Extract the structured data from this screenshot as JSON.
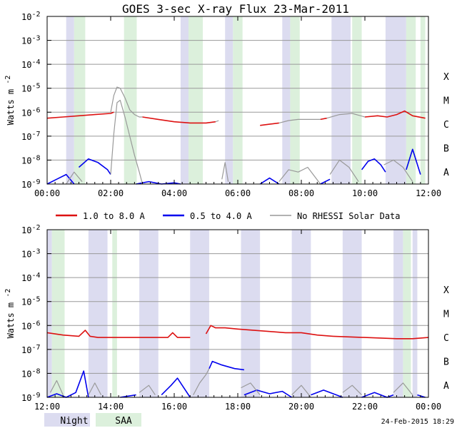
{
  "title": "GOES 3-sec X-ray Flux   23-Mar-2011",
  "timestamp": "24-Feb-2015 18:29",
  "colors": {
    "long": "#dd1111",
    "short": "#0000ee",
    "no_rhessi": "#999999",
    "night": "#dcdcf0",
    "saa": "#dcf0dc",
    "grid": "#999999"
  },
  "legend": {
    "long_label": "1.0 to 8.0 A",
    "short_label": "0.5 to 4.0 A",
    "no_rhessi_label": "No RHESSI Solar Data",
    "night_label": "Night",
    "saa_label": "SAA"
  },
  "chart_data": [
    {
      "type": "line",
      "panel": "top",
      "ylabel": "Watts m",
      "ylabel_exp": "-2",
      "ylim_log10": [
        -9,
        -2
      ],
      "xlim_hours": [
        0,
        12
      ],
      "x_tick_labels": [
        "00:00",
        "02:00",
        "04:00",
        "06:00",
        "08:00",
        "10:00",
        "12:00"
      ],
      "y_tick_labels": [
        {
          "base": "10",
          "exp": "-2"
        },
        {
          "base": "10",
          "exp": "-3"
        },
        {
          "base": "10",
          "exp": "-4"
        },
        {
          "base": "10",
          "exp": "-5"
        },
        {
          "base": "10",
          "exp": "-6"
        },
        {
          "base": "10",
          "exp": "-7"
        },
        {
          "base": "10",
          "exp": "-8"
        },
        {
          "base": "10",
          "exp": "-9"
        }
      ],
      "class_labels": [
        {
          "label": "X",
          "log10": -4
        },
        {
          "label": "M",
          "log10": -5
        },
        {
          "label": "C",
          "log10": -6
        },
        {
          "label": "B",
          "log10": -7
        },
        {
          "label": "A",
          "log10": -8
        }
      ],
      "night_intervals": [
        [
          0.6,
          0.85
        ],
        [
          4.2,
          4.45
        ],
        [
          5.6,
          5.85
        ],
        [
          7.4,
          7.65
        ],
        [
          8.95,
          9.55
        ],
        [
          10.65,
          11.3
        ]
      ],
      "saa_intervals": [
        [
          0.85,
          1.2
        ],
        [
          2.42,
          2.82
        ],
        [
          4.45,
          4.9
        ],
        [
          5.85,
          6.15
        ],
        [
          7.65,
          7.95
        ],
        [
          9.6,
          9.9
        ],
        [
          11.3,
          11.6
        ],
        [
          11.75,
          11.9
        ]
      ],
      "series": [
        {
          "name": "1.0 to 8.0 A",
          "color": "#dd1111",
          "segments": [
            {
              "t": [
                0,
                0.5,
                1.0,
                1.5,
                2.0,
                2.1
              ],
              "log10": [
                -6.25,
                -6.2,
                -6.15,
                -6.1,
                -6.05,
                -6.0
              ]
            },
            {
              "t": [
                3.0,
                3.5,
                4.0,
                4.5,
                5.0,
                5.3
              ],
              "log10": [
                -6.2,
                -6.3,
                -6.4,
                -6.45,
                -6.45,
                -6.4
              ]
            },
            {
              "t": [
                6.7,
                7.0,
                7.3
              ],
              "log10": [
                -6.55,
                -6.5,
                -6.45
              ]
            },
            {
              "t": [
                8.6,
                8.8
              ],
              "log10": [
                -6.3,
                -6.25
              ]
            },
            {
              "t": [
                10.0,
                10.4,
                10.7,
                11.0,
                11.25,
                11.5,
                11.9
              ],
              "log10": [
                -6.2,
                -6.15,
                -6.2,
                -6.1,
                -5.95,
                -6.15,
                -6.25
              ]
            }
          ]
        },
        {
          "name": "0.5 to 4.0 A",
          "color": "#0000ee",
          "segments": [
            {
              "t": [
                0.0,
                0.3,
                0.6,
                0.85
              ],
              "log10": [
                -9.0,
                -8.8,
                -8.6,
                -9.0
              ]
            },
            {
              "t": [
                1.0,
                1.3,
                1.6,
                1.9,
                2.0
              ],
              "log10": [
                -8.3,
                -7.95,
                -8.1,
                -8.4,
                -8.6
              ]
            },
            {
              "t": [
                2.8,
                3.2,
                3.6,
                4.0,
                4.2
              ],
              "log10": [
                -9.0,
                -8.9,
                -9.0,
                -8.95,
                -9.0
              ]
            },
            {
              "t": [
                6.7,
                7.0,
                7.3
              ],
              "log10": [
                -9.0,
                -8.75,
                -9.0
              ]
            },
            {
              "t": [
                8.6,
                8.9
              ],
              "log10": [
                -9.0,
                -8.8
              ]
            },
            {
              "t": [
                9.9,
                10.1,
                10.3,
                10.5,
                10.65
              ],
              "log10": [
                -8.4,
                -8.05,
                -7.95,
                -8.2,
                -8.5
              ]
            },
            {
              "t": [
                11.3,
                11.5,
                11.75
              ],
              "log10": [
                -8.4,
                -7.55,
                -8.6
              ]
            }
          ]
        },
        {
          "name": "No RHESSI Solar Data",
          "color": "#999999",
          "segments": [
            {
              "t": [
                0.6,
                0.85,
                1.1
              ],
              "log10": [
                -9.0,
                -8.5,
                -8.9
              ]
            },
            {
              "t": [
                2.0,
                2.1,
                2.2,
                2.3,
                2.45,
                2.6,
                2.75,
                2.9,
                3.0
              ],
              "log10": [
                -6.0,
                -5.3,
                -4.95,
                -5.0,
                -5.4,
                -5.9,
                -6.1,
                -6.2,
                -6.2
              ]
            },
            {
              "t": [
                2.0,
                2.1,
                2.2,
                2.3,
                2.45,
                2.6,
                2.75,
                2.9,
                3.0
              ],
              "log10": [
                -8.6,
                -6.9,
                -5.6,
                -5.5,
                -6.2,
                -7.0,
                -7.8,
                -8.5,
                -9.0
              ]
            },
            {
              "t": [
                5.3,
                5.4
              ],
              "log10": [
                -6.4,
                -6.35
              ]
            },
            {
              "t": [
                5.5,
                5.6,
                5.7
              ],
              "log10": [
                -8.8,
                -8.1,
                -8.9
              ]
            },
            {
              "t": [
                7.3,
                7.6,
                7.9,
                8.3,
                8.6
              ],
              "log10": [
                -6.45,
                -6.35,
                -6.3,
                -6.3,
                -6.3
              ]
            },
            {
              "t": [
                7.3,
                7.6,
                7.9,
                8.2,
                8.6
              ],
              "log10": [
                -8.9,
                -8.4,
                -8.5,
                -8.3,
                -9.0
              ]
            },
            {
              "t": [
                8.8,
                9.2,
                9.6,
                10.0
              ],
              "log10": [
                -6.25,
                -6.1,
                -6.05,
                -6.2
              ]
            },
            {
              "t": [
                8.9,
                9.2,
                9.5,
                9.8
              ],
              "log10": [
                -8.6,
                -8.0,
                -8.3,
                -8.9
              ]
            },
            {
              "t": [
                10.6,
                10.9,
                11.2,
                11.5
              ],
              "log10": [
                -8.2,
                -8.0,
                -8.3,
                -8.9
              ]
            }
          ]
        }
      ]
    },
    {
      "type": "line",
      "panel": "bottom",
      "ylabel": "Watts m",
      "ylabel_exp": "-2",
      "ylim_log10": [
        -9,
        -2
      ],
      "xlim_hours": [
        12,
        24
      ],
      "x_tick_labels": [
        "12:00",
        "14:00",
        "16:00",
        "18:00",
        "20:00",
        "22:00",
        "00:00"
      ],
      "y_tick_labels": [
        {
          "base": "10",
          "exp": "-2"
        },
        {
          "base": "10",
          "exp": "-3"
        },
        {
          "base": "10",
          "exp": "-4"
        },
        {
          "base": "10",
          "exp": "-5"
        },
        {
          "base": "10",
          "exp": "-6"
        },
        {
          "base": "10",
          "exp": "-7"
        },
        {
          "base": "10",
          "exp": "-8"
        },
        {
          "base": "10",
          "exp": "-9"
        }
      ],
      "class_labels": [
        {
          "label": "X",
          "log10": -4
        },
        {
          "label": "M",
          "log10": -5
        },
        {
          "label": "C",
          "log10": -6
        },
        {
          "label": "B",
          "log10": -7
        },
        {
          "label": "A",
          "log10": -8
        }
      ],
      "night_intervals": [
        [
          12.0,
          12.15
        ],
        [
          13.3,
          13.9
        ],
        [
          14.9,
          15.5
        ],
        [
          16.5,
          17.1
        ],
        [
          18.1,
          18.7
        ],
        [
          19.7,
          20.3
        ],
        [
          21.3,
          21.9
        ],
        [
          22.9,
          23.2
        ],
        [
          23.5,
          23.65
        ]
      ],
      "saa_intervals": [
        [
          12.15,
          12.55
        ],
        [
          14.05,
          14.2
        ],
        [
          23.2,
          23.45
        ]
      ],
      "series": [
        {
          "name": "1.0 to 8.0 A",
          "color": "#dd1111",
          "segments": [
            {
              "t": [
                12.0,
                12.5,
                13.0,
                13.2,
                13.35,
                13.6,
                14.0
              ],
              "log10": [
                -6.3,
                -6.4,
                -6.45,
                -6.2,
                -6.45,
                -6.5,
                -6.5
              ]
            },
            {
              "t": [
                14.0,
                14.5,
                15.0,
                15.5,
                15.8,
                15.95,
                16.1,
                16.5
              ],
              "log10": [
                -6.5,
                -6.5,
                -6.5,
                -6.5,
                -6.5,
                -6.3,
                -6.5,
                -6.5
              ]
            },
            {
              "t": [
                17.0,
                17.15,
                17.3,
                17.6,
                18.0,
                19.0
              ],
              "log10": [
                -6.35,
                -6.0,
                -6.1,
                -6.1,
                -6.15,
                -6.25
              ]
            },
            {
              "t": [
                19.0,
                19.5,
                19.8,
                20.0,
                20.5,
                21.0
              ],
              "log10": [
                -6.25,
                -6.3,
                -6.3,
                -6.3,
                -6.4,
                -6.45
              ]
            },
            {
              "t": [
                21.0,
                22.0,
                23.0,
                23.5,
                24.0
              ],
              "log10": [
                -6.45,
                -6.5,
                -6.55,
                -6.55,
                -6.5
              ]
            }
          ]
        },
        {
          "name": "0.5 to 4.0 A",
          "color": "#0000ee",
          "segments": [
            {
              "t": [
                12.0,
                12.3,
                12.6,
                12.9,
                13.15,
                13.3
              ],
              "log10": [
                -9.0,
                -8.85,
                -9.0,
                -8.8,
                -7.9,
                -9.0
              ]
            },
            {
              "t": [
                14.3,
                14.8
              ],
              "log10": [
                -9.0,
                -8.9
              ]
            },
            {
              "t": [
                15.6,
                15.9,
                16.1,
                16.3,
                16.5
              ],
              "log10": [
                -8.9,
                -8.5,
                -8.2,
                -8.6,
                -9.0
              ]
            },
            {
              "t": [
                17.1,
                17.2,
                17.5,
                17.9,
                18.2
              ],
              "log10": [
                -7.8,
                -7.5,
                -7.65,
                -7.8,
                -7.85
              ]
            },
            {
              "t": [
                18.2,
                18.6,
                19.0,
                19.4,
                19.7
              ],
              "log10": [
                -8.9,
                -8.7,
                -8.85,
                -8.75,
                -9.0
              ]
            },
            {
              "t": [
                20.3,
                20.7,
                21.1,
                21.3
              ],
              "log10": [
                -8.9,
                -8.7,
                -8.9,
                -9.0
              ]
            },
            {
              "t": [
                21.9,
                22.3,
                22.7,
                22.9
              ],
              "log10": [
                -9.0,
                -8.8,
                -9.0,
                -8.9
              ]
            },
            {
              "t": [
                23.65,
                23.9
              ],
              "log10": [
                -8.9,
                -9.0
              ]
            }
          ]
        },
        {
          "name": "No RHESSI Solar Data",
          "color": "#999999",
          "segments": [
            {
              "t": [
                12.1,
                12.3,
                12.5
              ],
              "log10": [
                -8.8,
                -8.3,
                -8.9
              ]
            },
            {
              "t": [
                13.3,
                13.5,
                13.7
              ],
              "log10": [
                -8.9,
                -8.4,
                -8.9
              ]
            },
            {
              "t": [
                14.9,
                15.2,
                15.4
              ],
              "log10": [
                -8.8,
                -8.5,
                -8.9
              ]
            },
            {
              "t": [
                16.6,
                16.8,
                17.0,
                17.1
              ],
              "log10": [
                -8.9,
                -8.4,
                -8.05,
                -7.8
              ]
            },
            {
              "t": [
                18.1,
                18.4,
                18.7
              ],
              "log10": [
                -8.6,
                -8.4,
                -8.9
              ]
            },
            {
              "t": [
                19.7,
                20.0,
                20.3
              ],
              "log10": [
                -8.9,
                -8.5,
                -9.0
              ]
            },
            {
              "t": [
                21.3,
                21.6,
                21.9
              ],
              "log10": [
                -8.8,
                -8.5,
                -8.9
              ]
            },
            {
              "t": [
                22.9,
                23.2,
                23.5
              ],
              "log10": [
                -8.8,
                -8.4,
                -8.9
              ]
            }
          ]
        }
      ]
    }
  ]
}
